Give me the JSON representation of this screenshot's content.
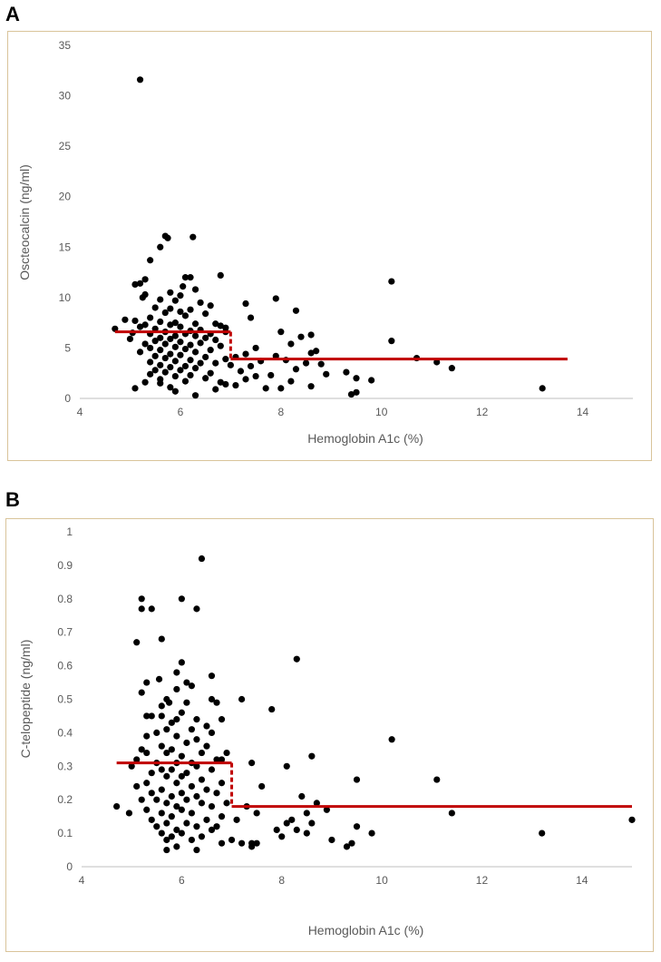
{
  "chart_data": [
    {
      "type": "scatter",
      "panel": "A",
      "xlabel": "Hemoglobin A1c (%)",
      "ylabel": "Oscteocalcin (ng/ml)",
      "xlim": [
        4,
        15
      ],
      "ylim": [
        0,
        35
      ],
      "xticks": [
        "4",
        "6",
        "8",
        "10",
        "12",
        "14"
      ],
      "yticks": [
        "0",
        "5",
        "10",
        "15",
        "20",
        "25",
        "30",
        "35"
      ],
      "grid": false,
      "marker_color": "#000000",
      "fit_color": "#c00000",
      "step_fit": [
        {
          "x1": 4.7,
          "x2": 7.0,
          "y": 6.6
        },
        {
          "x1": 7.0,
          "x2": 13.7,
          "y": 3.9
        }
      ],
      "points": [
        [
          5.2,
          31.6
        ],
        [
          5.7,
          16.1
        ],
        [
          5.75,
          15.9
        ],
        [
          6.25,
          16.0
        ],
        [
          5.6,
          15.0
        ],
        [
          5.4,
          13.7
        ],
        [
          6.8,
          12.2
        ],
        [
          6.2,
          12.0
        ],
        [
          6.1,
          12.0
        ],
        [
          5.3,
          11.8
        ],
        [
          10.2,
          11.6
        ],
        [
          5.2,
          11.4
        ],
        [
          5.1,
          11.3
        ],
        [
          6.05,
          11.1
        ],
        [
          6.3,
          10.8
        ],
        [
          5.8,
          10.5
        ],
        [
          6.0,
          10.2
        ],
        [
          5.3,
          10.3
        ],
        [
          5.25,
          10.0
        ],
        [
          7.9,
          9.9
        ],
        [
          5.6,
          9.8
        ],
        [
          5.9,
          9.7
        ],
        [
          6.4,
          9.5
        ],
        [
          7.3,
          9.4
        ],
        [
          6.6,
          9.2
        ],
        [
          5.5,
          9.0
        ],
        [
          5.8,
          8.9
        ],
        [
          6.2,
          8.8
        ],
        [
          8.3,
          8.7
        ],
        [
          6.0,
          8.6
        ],
        [
          5.7,
          8.5
        ],
        [
          6.5,
          8.4
        ],
        [
          6.1,
          8.2
        ],
        [
          5.4,
          8.0
        ],
        [
          7.4,
          8.0
        ],
        [
          4.9,
          7.8
        ],
        [
          5.1,
          7.7
        ],
        [
          5.6,
          7.6
        ],
        [
          5.9,
          7.5
        ],
        [
          6.3,
          7.4
        ],
        [
          6.7,
          7.4
        ],
        [
          5.3,
          7.3
        ],
        [
          5.8,
          7.3
        ],
        [
          6.8,
          7.2
        ],
        [
          5.2,
          7.1
        ],
        [
          6.0,
          7.1
        ],
        [
          6.9,
          7.0
        ],
        [
          4.7,
          6.9
        ],
        [
          5.5,
          6.9
        ],
        [
          6.4,
          6.8
        ],
        [
          6.2,
          6.7
        ],
        [
          5.7,
          6.6
        ],
        [
          8.0,
          6.6
        ],
        [
          6.9,
          6.6
        ],
        [
          5.05,
          6.5
        ],
        [
          5.4,
          6.4
        ],
        [
          6.1,
          6.4
        ],
        [
          6.6,
          6.4
        ],
        [
          8.6,
          6.3
        ],
        [
          5.9,
          6.2
        ],
        [
          6.3,
          6.2
        ],
        [
          8.4,
          6.1
        ],
        [
          5.6,
          6.0
        ],
        [
          6.5,
          6.0
        ],
        [
          5.0,
          5.9
        ],
        [
          5.8,
          5.9
        ],
        [
          6.7,
          5.8
        ],
        [
          10.2,
          5.7
        ],
        [
          5.5,
          5.7
        ],
        [
          6.0,
          5.6
        ],
        [
          6.4,
          5.5
        ],
        [
          5.3,
          5.4
        ],
        [
          5.7,
          5.4
        ],
        [
          8.2,
          5.4
        ],
        [
          6.2,
          5.3
        ],
        [
          6.8,
          5.2
        ],
        [
          5.9,
          5.1
        ],
        [
          7.5,
          5.0
        ],
        [
          5.4,
          5.0
        ],
        [
          6.1,
          4.9
        ],
        [
          6.6,
          4.8
        ],
        [
          5.6,
          4.8
        ],
        [
          8.7,
          4.7
        ],
        [
          5.2,
          4.6
        ],
        [
          6.3,
          4.6
        ],
        [
          8.6,
          4.5
        ],
        [
          5.8,
          4.4
        ],
        [
          7.3,
          4.4
        ],
        [
          6.0,
          4.3
        ],
        [
          7.9,
          4.2
        ],
        [
          5.5,
          4.2
        ],
        [
          6.5,
          4.1
        ],
        [
          7.1,
          4.1
        ],
        [
          10.7,
          4.0
        ],
        [
          5.7,
          4.0
        ],
        [
          6.9,
          3.9
        ],
        [
          6.2,
          3.8
        ],
        [
          8.1,
          3.8
        ],
        [
          5.9,
          3.7
        ],
        [
          7.6,
          3.7
        ],
        [
          11.1,
          3.6
        ],
        [
          5.4,
          3.6
        ],
        [
          6.4,
          3.5
        ],
        [
          6.7,
          3.5
        ],
        [
          8.5,
          3.5
        ],
        [
          8.8,
          3.4
        ],
        [
          5.6,
          3.3
        ],
        [
          7.0,
          3.3
        ],
        [
          6.1,
          3.2
        ],
        [
          7.4,
          3.2
        ],
        [
          5.8,
          3.1
        ],
        [
          11.4,
          3.0
        ],
        [
          6.3,
          3.0
        ],
        [
          8.3,
          2.9
        ],
        [
          5.5,
          2.8
        ],
        [
          6.0,
          2.8
        ],
        [
          7.2,
          2.7
        ],
        [
          9.3,
          2.6
        ],
        [
          5.7,
          2.6
        ],
        [
          6.6,
          2.5
        ],
        [
          5.4,
          2.4
        ],
        [
          8.9,
          2.4
        ],
        [
          6.2,
          2.3
        ],
        [
          7.8,
          2.3
        ],
        [
          5.9,
          2.2
        ],
        [
          7.5,
          2.2
        ],
        [
          9.5,
          2.0
        ],
        [
          6.5,
          2.0
        ],
        [
          5.6,
          1.9
        ],
        [
          7.3,
          1.9
        ],
        [
          9.8,
          1.8
        ],
        [
          6.1,
          1.7
        ],
        [
          8.2,
          1.7
        ],
        [
          5.3,
          1.6
        ],
        [
          6.8,
          1.6
        ],
        [
          5.6,
          1.5
        ],
        [
          6.9,
          1.4
        ],
        [
          7.1,
          1.3
        ],
        [
          8.6,
          1.2
        ],
        [
          5.8,
          1.1
        ],
        [
          7.7,
          1.0
        ],
        [
          13.2,
          1.0
        ],
        [
          5.1,
          1.0
        ],
        [
          8.0,
          1.0
        ],
        [
          6.7,
          0.9
        ],
        [
          9.5,
          0.6
        ],
        [
          5.9,
          0.7
        ],
        [
          9.4,
          0.4
        ],
        [
          6.3,
          0.3
        ]
      ]
    },
    {
      "type": "scatter",
      "panel": "B",
      "xlabel": "Hemoglobin A1c (%)",
      "ylabel": "C-telopeptide (ng/ml)",
      "xlim": [
        4,
        15
      ],
      "ylim": [
        0,
        1
      ],
      "xticks": [
        "4",
        "6",
        "8",
        "10",
        "12",
        "14"
      ],
      "yticks": [
        "0",
        "0.1",
        "0.2",
        "0.3",
        "0.4",
        "0.5",
        "0.6",
        "0.7",
        "0.8",
        "0.9",
        "1"
      ],
      "grid": false,
      "marker_color": "#000000",
      "fit_color": "#c00000",
      "step_fit": [
        {
          "x1": 4.7,
          "x2": 7.0,
          "y": 0.31
        },
        {
          "x1": 7.0,
          "x2": 15.0,
          "y": 0.18
        }
      ],
      "points": [
        [
          6.4,
          0.92
        ],
        [
          5.2,
          0.8
        ],
        [
          6.0,
          0.8
        ],
        [
          5.2,
          0.77
        ],
        [
          5.4,
          0.77
        ],
        [
          6.3,
          0.77
        ],
        [
          5.1,
          0.67
        ],
        [
          5.6,
          0.68
        ],
        [
          8.3,
          0.62
        ],
        [
          6.0,
          0.61
        ],
        [
          5.9,
          0.58
        ],
        [
          6.6,
          0.57
        ],
        [
          5.55,
          0.56
        ],
        [
          5.3,
          0.55
        ],
        [
          6.1,
          0.55
        ],
        [
          6.2,
          0.54
        ],
        [
          5.9,
          0.53
        ],
        [
          5.2,
          0.52
        ],
        [
          5.7,
          0.5
        ],
        [
          7.2,
          0.5
        ],
        [
          6.6,
          0.5
        ],
        [
          6.7,
          0.49
        ],
        [
          6.1,
          0.49
        ],
        [
          5.75,
          0.49
        ],
        [
          5.6,
          0.48
        ],
        [
          7.8,
          0.47
        ],
        [
          6.0,
          0.46
        ],
        [
          5.3,
          0.45
        ],
        [
          5.4,
          0.45
        ],
        [
          5.6,
          0.45
        ],
        [
          5.9,
          0.44
        ],
        [
          6.3,
          0.44
        ],
        [
          6.8,
          0.44
        ],
        [
          5.8,
          0.43
        ],
        [
          6.5,
          0.42
        ],
        [
          5.7,
          0.41
        ],
        [
          6.2,
          0.41
        ],
        [
          5.5,
          0.4
        ],
        [
          6.6,
          0.4
        ],
        [
          5.3,
          0.39
        ],
        [
          5.9,
          0.39
        ],
        [
          6.3,
          0.38
        ],
        [
          10.2,
          0.38
        ],
        [
          6.1,
          0.37
        ],
        [
          5.6,
          0.36
        ],
        [
          6.5,
          0.36
        ],
        [
          5.2,
          0.35
        ],
        [
          5.8,
          0.35
        ],
        [
          6.4,
          0.34
        ],
        [
          5.3,
          0.34
        ],
        [
          5.7,
          0.34
        ],
        [
          6.9,
          0.34
        ],
        [
          8.6,
          0.33
        ],
        [
          6.0,
          0.33
        ],
        [
          5.1,
          0.32
        ],
        [
          6.7,
          0.32
        ],
        [
          6.8,
          0.32
        ],
        [
          6.2,
          0.31
        ],
        [
          5.5,
          0.31
        ],
        [
          5.9,
          0.31
        ],
        [
          7.4,
          0.31
        ],
        [
          6.3,
          0.3
        ],
        [
          5.0,
          0.3
        ],
        [
          8.1,
          0.3
        ],
        [
          5.6,
          0.29
        ],
        [
          6.6,
          0.29
        ],
        [
          5.8,
          0.29
        ],
        [
          6.1,
          0.28
        ],
        [
          5.4,
          0.28
        ],
        [
          6.0,
          0.27
        ],
        [
          5.7,
          0.27
        ],
        [
          6.4,
          0.26
        ],
        [
          11.1,
          0.26
        ],
        [
          9.5,
          0.26
        ],
        [
          5.3,
          0.25
        ],
        [
          6.8,
          0.25
        ],
        [
          5.9,
          0.25
        ],
        [
          5.1,
          0.24
        ],
        [
          6.2,
          0.24
        ],
        [
          7.6,
          0.24
        ],
        [
          5.6,
          0.23
        ],
        [
          6.5,
          0.23
        ],
        [
          6.0,
          0.22
        ],
        [
          5.4,
          0.22
        ],
        [
          6.7,
          0.22
        ],
        [
          5.8,
          0.21
        ],
        [
          8.4,
          0.21
        ],
        [
          6.3,
          0.21
        ],
        [
          5.5,
          0.2
        ],
        [
          6.1,
          0.2
        ],
        [
          5.2,
          0.2
        ],
        [
          5.7,
          0.19
        ],
        [
          6.9,
          0.19
        ],
        [
          8.7,
          0.19
        ],
        [
          6.4,
          0.19
        ],
        [
          5.9,
          0.18
        ],
        [
          4.7,
          0.18
        ],
        [
          6.6,
          0.18
        ],
        [
          7.3,
          0.18
        ],
        [
          8.9,
          0.17
        ],
        [
          5.3,
          0.17
        ],
        [
          6.0,
          0.17
        ],
        [
          11.4,
          0.16
        ],
        [
          5.6,
          0.16
        ],
        [
          6.2,
          0.16
        ],
        [
          4.95,
          0.16
        ],
        [
          7.5,
          0.16
        ],
        [
          8.5,
          0.16
        ],
        [
          5.8,
          0.15
        ],
        [
          6.8,
          0.15
        ],
        [
          8.2,
          0.14
        ],
        [
          6.5,
          0.14
        ],
        [
          5.4,
          0.14
        ],
        [
          7.1,
          0.14
        ],
        [
          15.0,
          0.14
        ],
        [
          5.7,
          0.13
        ],
        [
          6.1,
          0.13
        ],
        [
          8.1,
          0.13
        ],
        [
          8.6,
          0.13
        ],
        [
          6.7,
          0.12
        ],
        [
          5.5,
          0.12
        ],
        [
          6.3,
          0.12
        ],
        [
          9.5,
          0.12
        ],
        [
          7.9,
          0.11
        ],
        [
          6.6,
          0.11
        ],
        [
          5.9,
          0.11
        ],
        [
          8.3,
          0.11
        ],
        [
          6.0,
          0.1
        ],
        [
          9.8,
          0.1
        ],
        [
          13.2,
          0.1
        ],
        [
          5.6,
          0.1
        ],
        [
          8.5,
          0.1
        ],
        [
          6.4,
          0.09
        ],
        [
          5.8,
          0.09
        ],
        [
          8.0,
          0.09
        ],
        [
          7.0,
          0.08
        ],
        [
          5.7,
          0.08
        ],
        [
          9.0,
          0.08
        ],
        [
          6.2,
          0.08
        ],
        [
          7.4,
          0.07
        ],
        [
          6.8,
          0.07
        ],
        [
          9.4,
          0.07
        ],
        [
          7.2,
          0.07
        ],
        [
          7.5,
          0.07
        ],
        [
          5.9,
          0.06
        ],
        [
          9.3,
          0.06
        ],
        [
          7.4,
          0.06
        ],
        [
          5.7,
          0.05
        ],
        [
          6.3,
          0.05
        ]
      ]
    }
  ]
}
